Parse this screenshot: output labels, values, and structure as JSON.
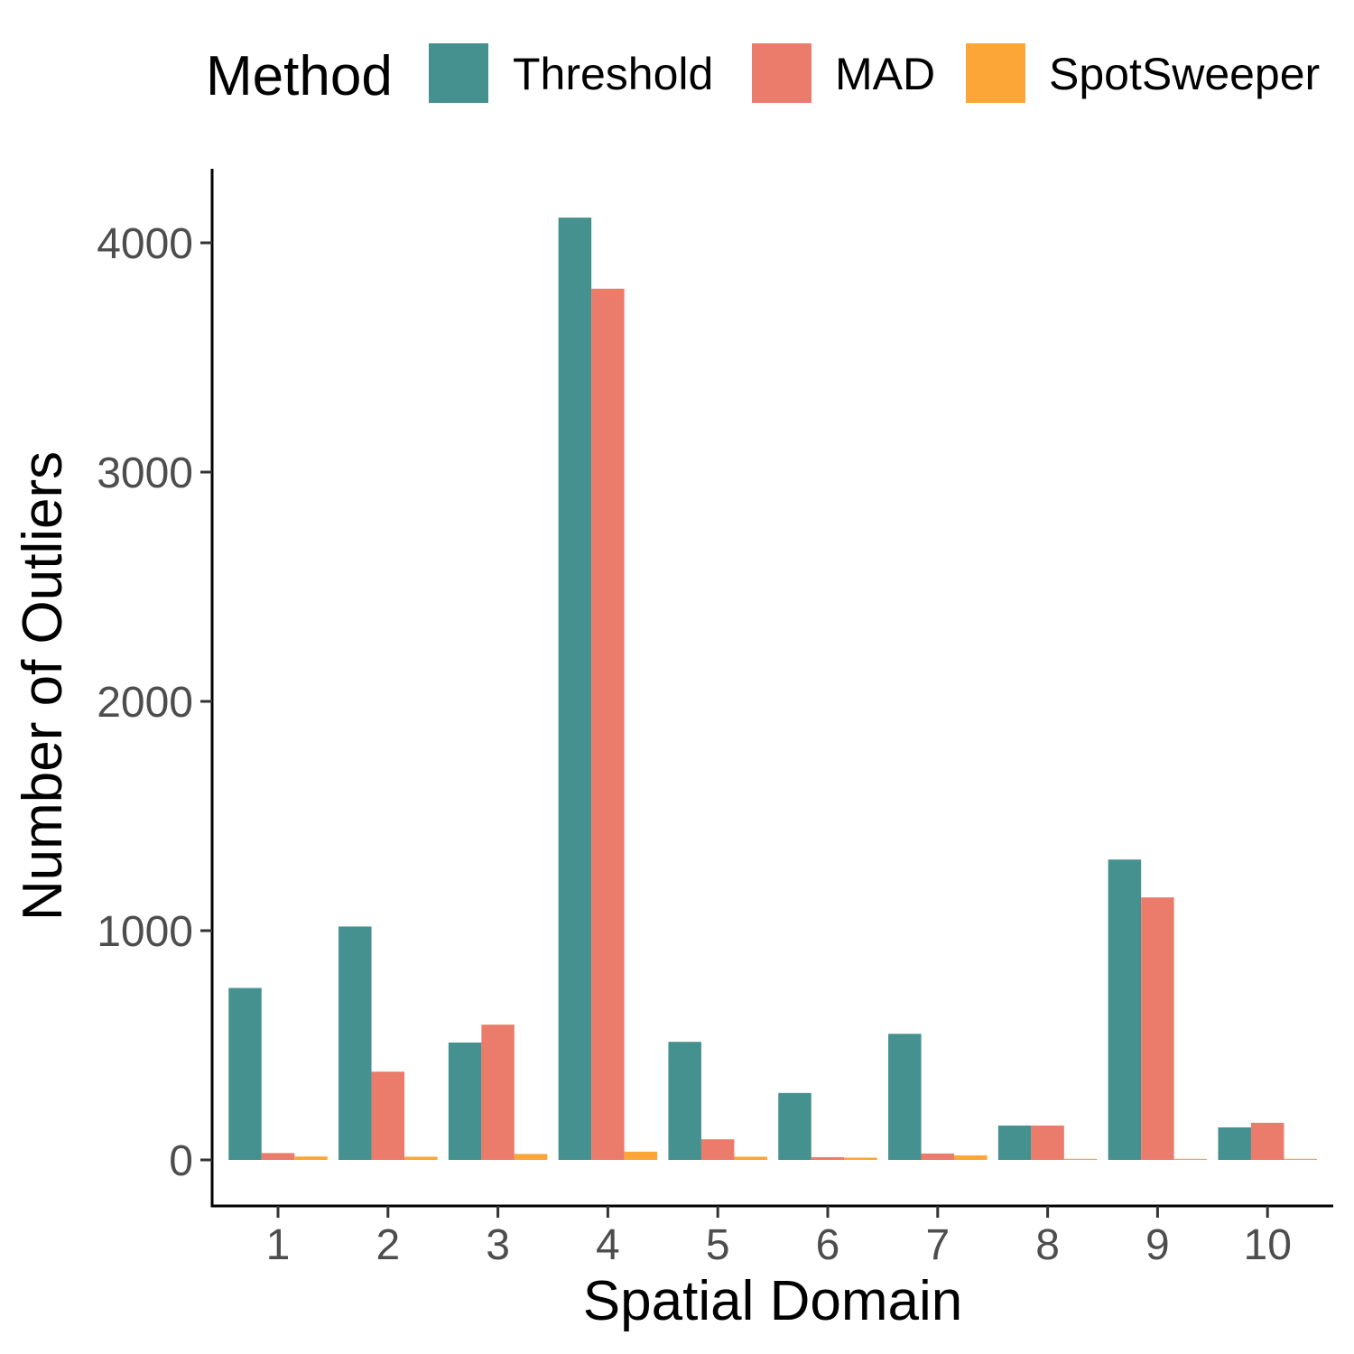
{
  "chart_data": {
    "type": "bar",
    "xlabel": "Spatial Domain",
    "ylabel": "Number of Outliers",
    "legend_title": "Method",
    "legend_position": "top",
    "grid": false,
    "ylim": [
      -200,
      4300
    ],
    "yticks": [
      "0",
      "1000",
      "2000",
      "3000",
      "4000"
    ],
    "categories": [
      "1",
      "2",
      "3",
      "4",
      "5",
      "6",
      "7",
      "8",
      "9",
      "10"
    ],
    "series": [
      {
        "name": "Threshold",
        "color": "#45918f",
        "values": [
          750,
          1018,
          512,
          4110,
          515,
          292,
          550,
          150,
          1310,
          142
        ]
      },
      {
        "name": "MAD",
        "color": "#eb7c6c",
        "values": [
          30,
          385,
          590,
          3800,
          90,
          12,
          28,
          150,
          1145,
          162
        ]
      },
      {
        "name": "SpotSweeper",
        "color": "#fba637",
        "values": [
          15,
          14,
          26,
          36,
          14,
          10,
          20,
          3,
          3,
          2
        ]
      }
    ]
  }
}
